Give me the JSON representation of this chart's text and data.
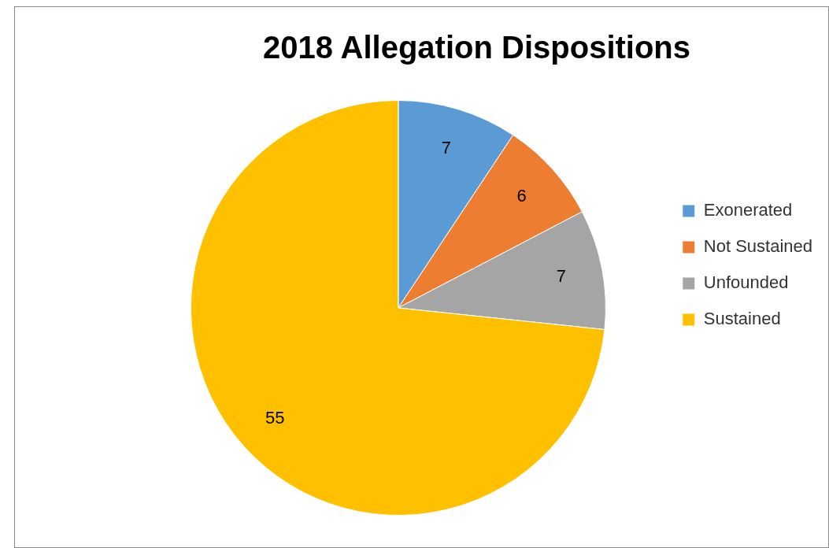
{
  "chart_data": {
    "type": "pie",
    "title": "2018 Allegation Dispositions",
    "categories": [
      "Exonerated",
      "Not Sustained",
      "Unfounded",
      "Sustained"
    ],
    "values": [
      7,
      6,
      7,
      55
    ],
    "colors": [
      "#5b9bd5",
      "#ed7d31",
      "#a5a5a5",
      "#ffc000"
    ],
    "data_labels": true,
    "legend": "right"
  }
}
